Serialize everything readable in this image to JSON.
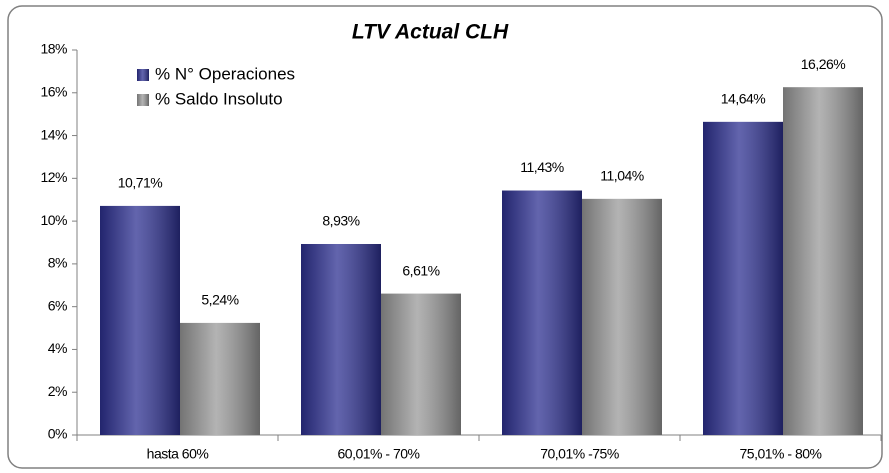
{
  "chart_data": {
    "type": "bar",
    "title": "LTV Actual CLH",
    "categories": [
      "hasta 60%",
      "60,01% - 70%",
      "70,01% -75%",
      "75,01% - 80%"
    ],
    "series": [
      {
        "name": "% N° Operaciones",
        "color": "#2e3192",
        "values": [
          10.71,
          8.93,
          11.43,
          14.64
        ],
        "value_labels": [
          "10,71%",
          "8,93%",
          "11,43%",
          "14,64%"
        ]
      },
      {
        "name": "% Saldo Insoluto",
        "color": "#9a9a9a",
        "values": [
          5.24,
          6.61,
          11.04,
          16.26
        ],
        "value_labels": [
          "5,24%",
          "6,61%",
          "11,04%",
          "16,26%"
        ]
      }
    ],
    "ylim": [
      0,
      18
    ],
    "yticks": [
      {
        "value": 0,
        "label": "0%"
      },
      {
        "value": 2,
        "label": "2%"
      },
      {
        "value": 4,
        "label": "4%"
      },
      {
        "value": 6,
        "label": "6%"
      },
      {
        "value": 8,
        "label": "8%"
      },
      {
        "value": 10,
        "label": "10%"
      },
      {
        "value": 12,
        "label": "12%"
      },
      {
        "value": 14,
        "label": "14%"
      },
      {
        "value": 16,
        "label": "16%"
      },
      {
        "value": 18,
        "label": "18%"
      }
    ],
    "grid": false,
    "legend": "upper left"
  }
}
